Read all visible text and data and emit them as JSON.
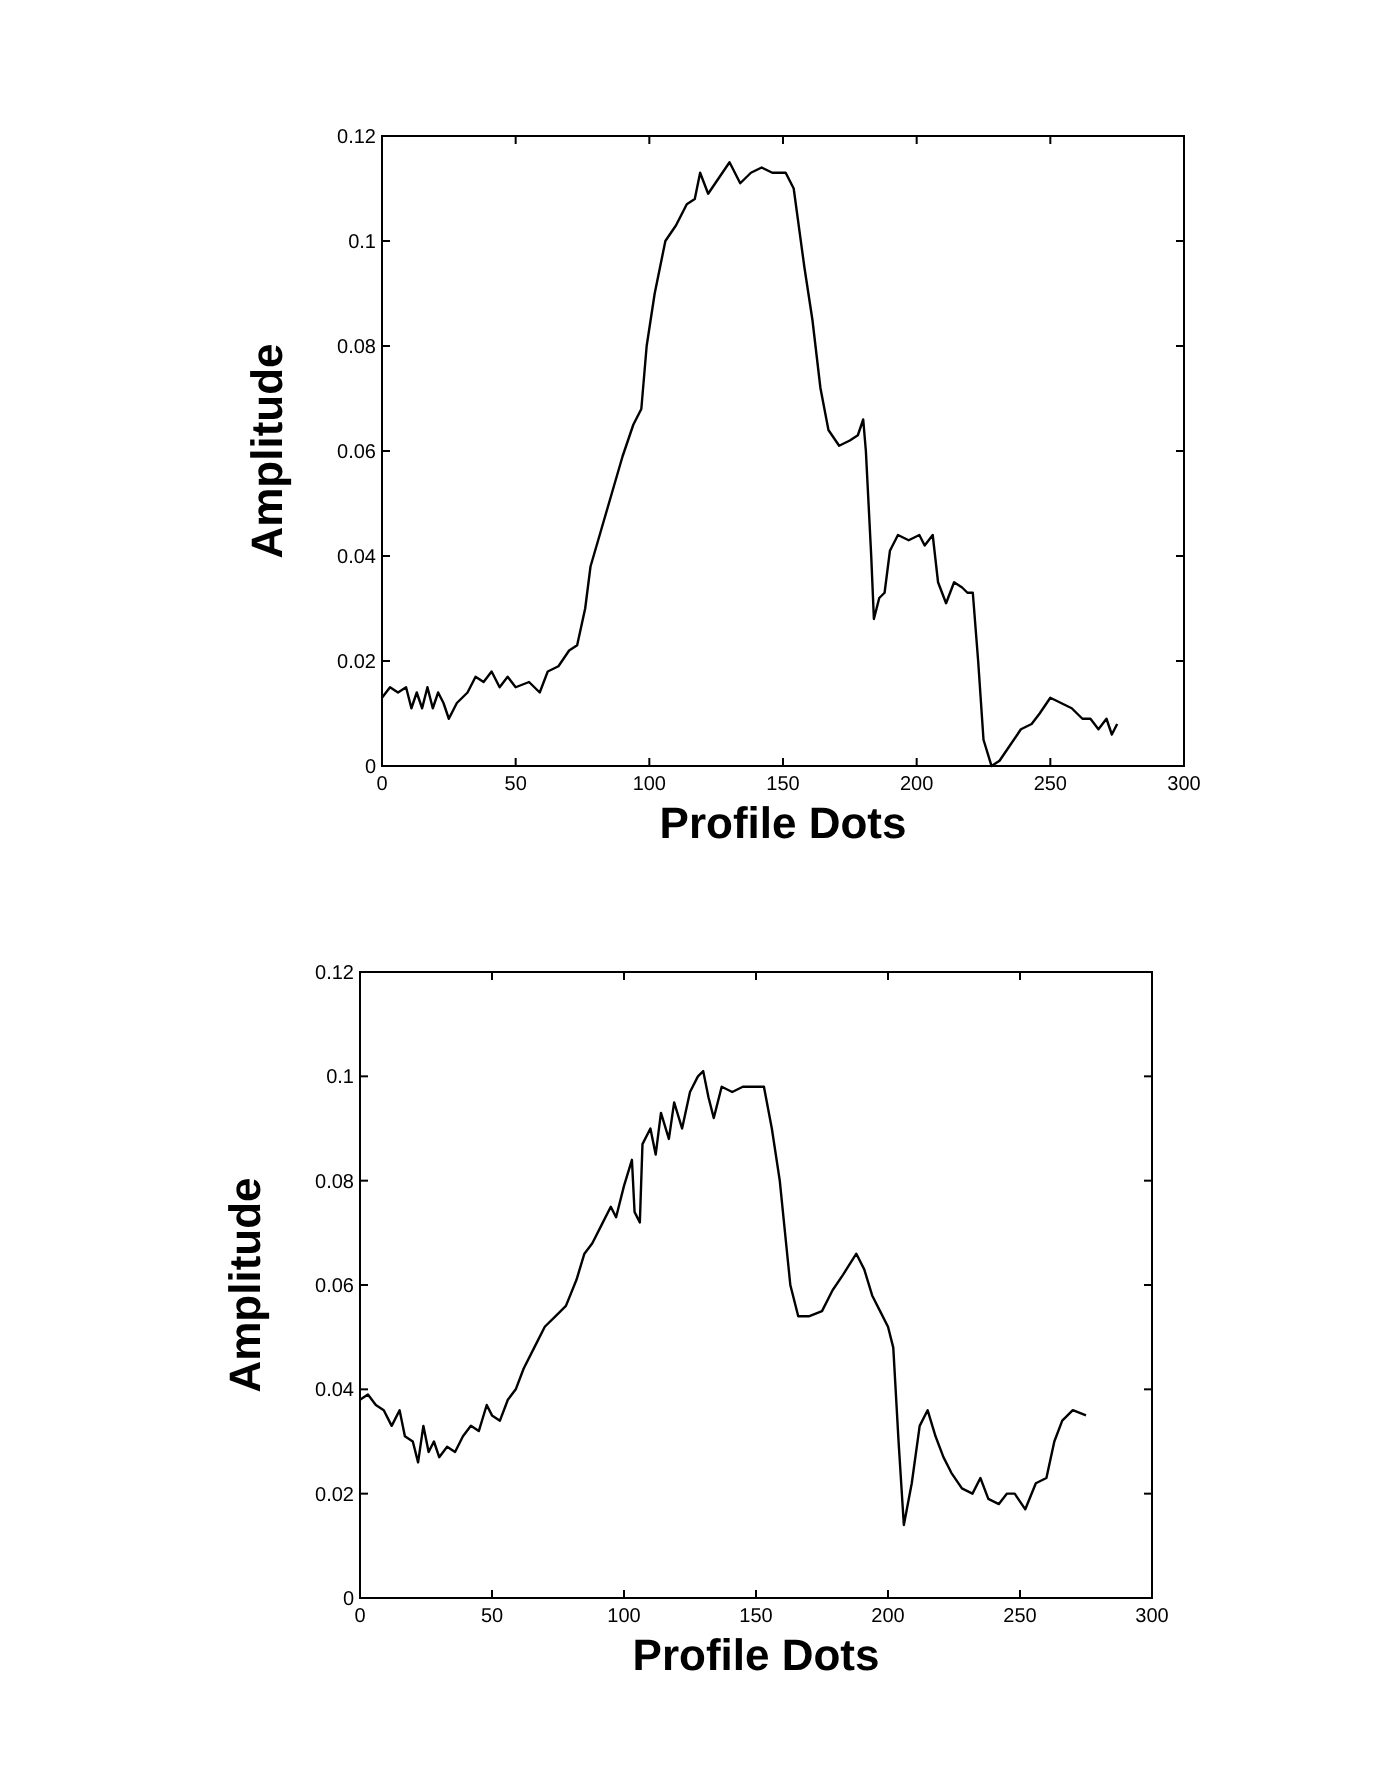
{
  "chart_data": [
    {
      "type": "line",
      "xlabel": "Profile Dots",
      "ylabel": "Amplitude",
      "xlim": [
        0,
        300
      ],
      "xticks": [
        0,
        50,
        100,
        150,
        200,
        250,
        300
      ],
      "ylim": [
        0,
        0.12
      ],
      "yticks": [
        0,
        0.02,
        0.04,
        0.06,
        0.08,
        0.1,
        0.12
      ],
      "grid": false,
      "marker": "none",
      "line_style": "solid",
      "series": [
        {
          "color": "#000000",
          "x": [
            0,
            3,
            6,
            9,
            11,
            13,
            15,
            17,
            19,
            21,
            23,
            25,
            28,
            32,
            35,
            38,
            41,
            44,
            47,
            50,
            55,
            59,
            62,
            66,
            70,
            73,
            76,
            78,
            82,
            86,
            90,
            94,
            97,
            99,
            102,
            106,
            110,
            114,
            117,
            119,
            122,
            126,
            130,
            134,
            138,
            142,
            146,
            151,
            154,
            158,
            161,
            164,
            167,
            171,
            175,
            178,
            180,
            181,
            183,
            184,
            186,
            188,
            190,
            193,
            197,
            201,
            203,
            206,
            208,
            211,
            214,
            217,
            219,
            221,
            223,
            225,
            228,
            231,
            235,
            239,
            243,
            246,
            250,
            254,
            258,
            262,
            265,
            268,
            271,
            273,
            275
          ],
          "values": [
            0.013,
            0.015,
            0.014,
            0.015,
            0.011,
            0.014,
            0.011,
            0.015,
            0.011,
            0.014,
            0.012,
            0.009,
            0.012,
            0.014,
            0.017,
            0.016,
            0.018,
            0.015,
            0.017,
            0.015,
            0.016,
            0.014,
            0.018,
            0.019,
            0.022,
            0.023,
            0.03,
            0.038,
            0.045,
            0.052,
            0.059,
            0.065,
            0.068,
            0.08,
            0.09,
            0.1,
            0.103,
            0.107,
            0.108,
            0.113,
            0.109,
            0.112,
            0.115,
            0.111,
            0.113,
            0.114,
            0.113,
            0.113,
            0.11,
            0.095,
            0.085,
            0.072,
            0.064,
            0.061,
            0.062,
            0.063,
            0.066,
            0.06,
            0.04,
            0.028,
            0.032,
            0.033,
            0.041,
            0.044,
            0.043,
            0.044,
            0.042,
            0.044,
            0.035,
            0.031,
            0.035,
            0.034,
            0.033,
            0.033,
            0.02,
            0.005,
            0,
            0.001,
            0.004,
            0.007,
            0.008,
            0.01,
            0.013,
            0.012,
            0.011,
            0.009,
            0.009,
            0.007,
            0.009,
            0.006,
            0.008
          ]
        }
      ]
    },
    {
      "type": "line",
      "xlabel": "Profile Dots",
      "ylabel": "Amplitude",
      "xlim": [
        0,
        300
      ],
      "xticks": [
        0,
        50,
        100,
        150,
        200,
        250,
        300
      ],
      "ylim": [
        0,
        0.12
      ],
      "yticks": [
        0,
        0.02,
        0.04,
        0.06,
        0.08,
        0.1,
        0.12
      ],
      "grid": false,
      "marker": "none",
      "line_style": "solid",
      "series": [
        {
          "color": "#000000",
          "x": [
            0,
            3,
            6,
            9,
            12,
            15,
            17,
            20,
            22,
            24,
            26,
            28,
            30,
            33,
            36,
            39,
            42,
            45,
            48,
            50,
            53,
            56,
            59,
            62,
            66,
            70,
            74,
            78,
            82,
            85,
            88,
            92,
            95,
            97,
            100,
            103,
            104,
            106,
            107,
            110,
            112,
            114,
            117,
            119,
            122,
            125,
            128,
            130,
            132,
            134,
            137,
            141,
            145,
            150,
            153,
            156,
            159,
            161,
            163,
            166,
            170,
            175,
            179,
            183,
            188,
            191,
            194,
            197,
            200,
            202,
            204,
            206,
            209,
            212,
            215,
            218,
            221,
            224,
            228,
            232,
            235,
            238,
            242,
            245,
            248,
            252,
            256,
            260,
            263,
            266,
            270,
            275
          ],
          "values": [
            0.038,
            0.039,
            0.037,
            0.036,
            0.033,
            0.036,
            0.031,
            0.03,
            0.026,
            0.033,
            0.028,
            0.03,
            0.027,
            0.029,
            0.028,
            0.031,
            0.033,
            0.032,
            0.037,
            0.035,
            0.034,
            0.038,
            0.04,
            0.044,
            0.048,
            0.052,
            0.054,
            0.056,
            0.061,
            0.066,
            0.068,
            0.072,
            0.075,
            0.073,
            0.079,
            0.084,
            0.074,
            0.072,
            0.087,
            0.09,
            0.085,
            0.093,
            0.088,
            0.095,
            0.09,
            0.097,
            0.1,
            0.101,
            0.096,
            0.092,
            0.098,
            0.097,
            0.098,
            0.098,
            0.098,
            0.09,
            0.08,
            0.07,
            0.06,
            0.054,
            0.054,
            0.055,
            0.059,
            0.062,
            0.066,
            0.063,
            0.058,
            0.055,
            0.052,
            0.048,
            0.03,
            0.014,
            0.022,
            0.033,
            0.036,
            0.031,
            0.027,
            0.024,
            0.021,
            0.02,
            0.023,
            0.019,
            0.018,
            0.02,
            0.02,
            0.017,
            0.022,
            0.023,
            0.03,
            0.034,
            0.036,
            0.035
          ]
        }
      ]
    }
  ]
}
